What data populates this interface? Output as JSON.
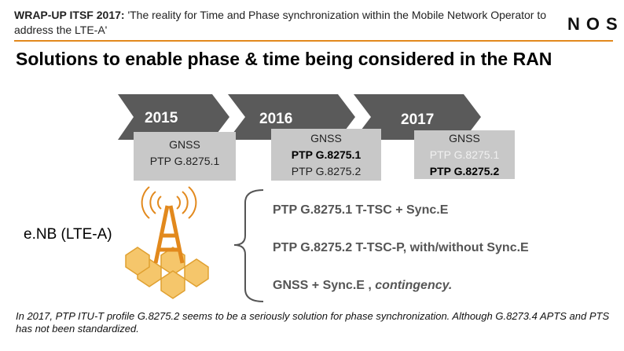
{
  "header": {
    "label": "WRAP-UP ITSF 2017:",
    "text": "'The reality for Time and Phase synchronization within the Mobile Network Operator to address the LTE-A'",
    "logo": "NOS"
  },
  "title": "Solutions to enable phase & time being considered in the RAN",
  "timeline": [
    {
      "year": "2015",
      "lines": [
        "GNSS",
        "PTP G.8275.1"
      ]
    },
    {
      "year": "2016",
      "lines": [
        "GNSS",
        "PTP G.8275.1",
        "PTP G.8275.2"
      ]
    },
    {
      "year": "2017",
      "lines": [
        "GNSS",
        "PTP G.8275.1",
        "PTP G.8275.2"
      ]
    }
  ],
  "node_label": "e.NB (LTE-A)",
  "options": [
    {
      "text": "PTP G.8275.1 T-TSC + Sync.E"
    },
    {
      "text": "PTP G.8275.2 T-TSC-P, with/without Sync.E"
    },
    {
      "text": "GNSS + Sync.E ,",
      "emphasis": "contingency."
    }
  ],
  "footer": "In 2017, PTP ITU-T profile G.8275.2 seems to be a seriously solution for phase synchronization. Although G.8273.4 APTS and PTS has not been standardized."
}
